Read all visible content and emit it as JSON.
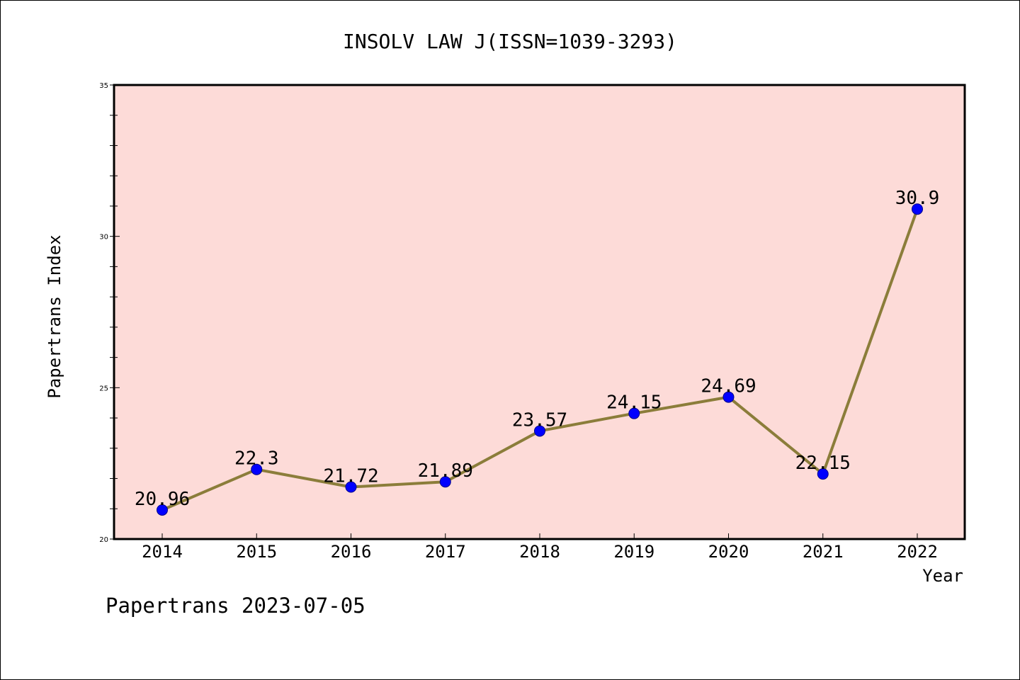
{
  "chart_data": {
    "type": "line",
    "title": "INSOLV LAW J(ISSN=1039-3293)",
    "xlabel": "Year",
    "ylabel": "Papertrans Index",
    "categories": [
      "2014",
      "2015",
      "2016",
      "2017",
      "2018",
      "2019",
      "2020",
      "2021",
      "2022"
    ],
    "series": [
      {
        "values": [
          20.96,
          22.3,
          21.72,
          21.89,
          23.57,
          24.15,
          24.69,
          22.15,
          30.9
        ],
        "data_labels": [
          "20.96",
          "22.3",
          "21.72",
          "21.89",
          "23.57",
          "24.15",
          "24.69",
          "22.15",
          "30.9"
        ]
      }
    ],
    "ylim": [
      20,
      35
    ],
    "y_ticks": [
      "20",
      "25",
      "30",
      "35"
    ],
    "grid": false,
    "plot_background": "#fddbd8",
    "line_color": "#8b7d3a",
    "marker_color": "#0000ff",
    "footer": "Papertrans 2023-07-05"
  }
}
